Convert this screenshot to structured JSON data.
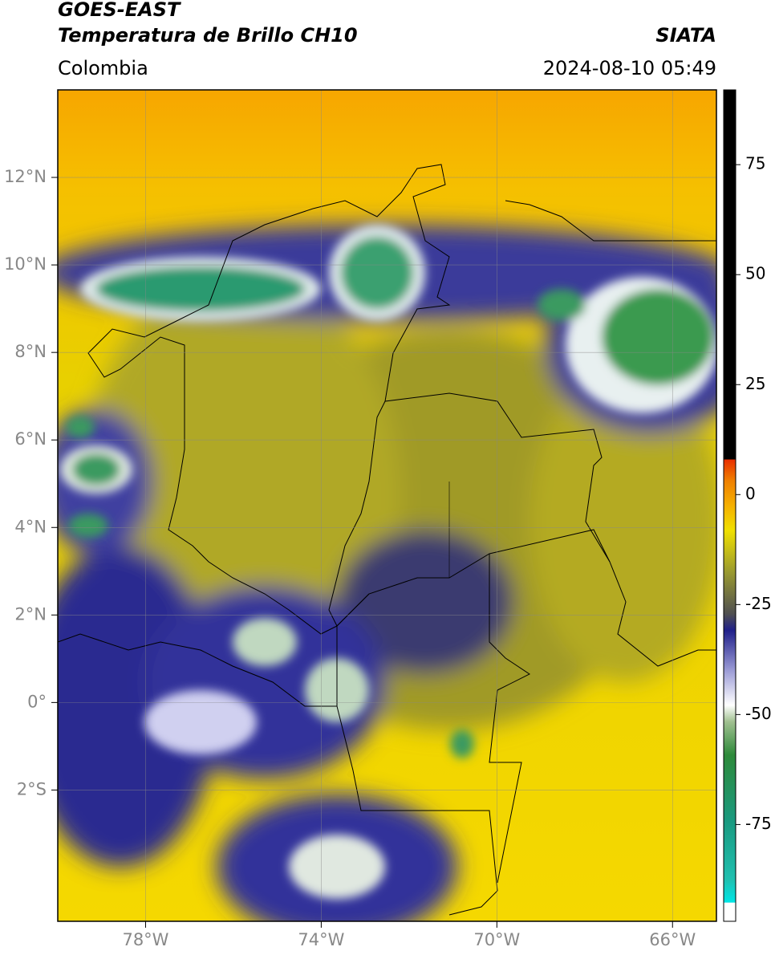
{
  "header": {
    "satellite": "GOES-EAST",
    "product": "Temperatura de Brillo CH10",
    "source": "SIATA",
    "region": "Colombia",
    "timestamp": "2024-08-10 05:49"
  },
  "map": {
    "xlim": [
      -80,
      -65
    ],
    "ylim": [
      -5,
      14
    ],
    "xticks": [
      {
        "value": -78,
        "label": "78°W"
      },
      {
        "value": -74,
        "label": "74°W"
      },
      {
        "value": -70,
        "label": "70°W"
      },
      {
        "value": -66,
        "label": "66°W"
      }
    ],
    "yticks": [
      {
        "value": 12,
        "label": "12°N"
      },
      {
        "value": 10,
        "label": "10°N"
      },
      {
        "value": 8,
        "label": "8°N"
      },
      {
        "value": 6,
        "label": "6°N"
      },
      {
        "value": 4,
        "label": "4°N"
      },
      {
        "value": 2,
        "label": "2°N"
      },
      {
        "value": 0,
        "label": "0°"
      },
      {
        "value": -2,
        "label": "2°S"
      }
    ],
    "grid": true
  },
  "colorbar": {
    "ylim": [
      -97,
      92
    ],
    "yticks": [
      75,
      50,
      25,
      0,
      -25,
      -50,
      -75
    ]
  }
}
